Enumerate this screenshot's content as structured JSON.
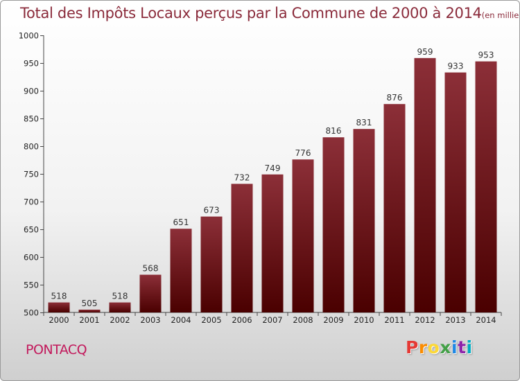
{
  "title": {
    "main": "Total des Impôts Locaux perçus par la Commune de 2000 à 2014",
    "unit": "(en milliers d'€)"
  },
  "commune": "PONTACQ",
  "logo": {
    "text": "Proxiti",
    "colors": [
      "#e53935",
      "#fb8c00",
      "#fdd835",
      "#43a047",
      "#1e88e5",
      "#8e24aa",
      "#00acc1"
    ]
  },
  "colors": {
    "bar_top": "#8c2f38",
    "bar_bottom": "#4a0000",
    "title": "#8a2a3a",
    "commune": "#c2185b"
  },
  "chart_data": {
    "type": "bar",
    "categories": [
      "2000",
      "2001",
      "2002",
      "2003",
      "2004",
      "2005",
      "2006",
      "2007",
      "2008",
      "2009",
      "2010",
      "2011",
      "2012",
      "2013",
      "2014"
    ],
    "values": [
      518,
      505,
      518,
      568,
      651,
      673,
      732,
      749,
      776,
      816,
      831,
      876,
      959,
      933,
      953
    ],
    "title": "Total des Impôts Locaux perçus par la Commune de 2000 à 2014",
    "xlabel": "",
    "ylabel": "",
    "ylim": [
      500,
      1000
    ],
    "yticks": [
      500,
      550,
      600,
      650,
      700,
      750,
      800,
      850,
      900,
      950,
      1000
    ],
    "grid": false,
    "legend": "none"
  }
}
